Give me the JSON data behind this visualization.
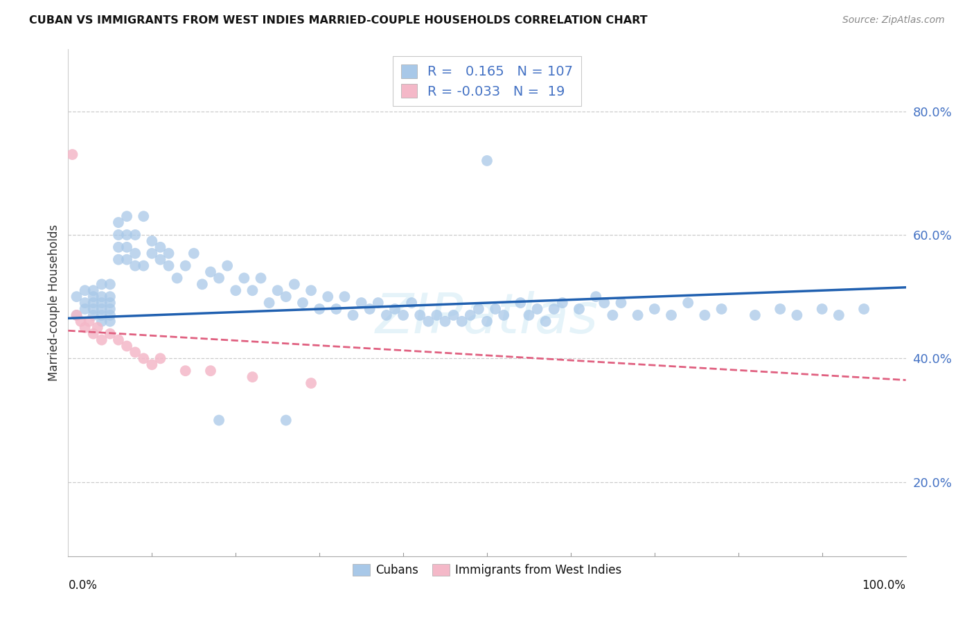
{
  "title": "CUBAN VS IMMIGRANTS FROM WEST INDIES MARRIED-COUPLE HOUSEHOLDS CORRELATION CHART",
  "source": "Source: ZipAtlas.com",
  "ylabel": "Married-couple Households",
  "blue_color": "#a8c8e8",
  "pink_color": "#f4b8c8",
  "blue_line_color": "#2060b0",
  "pink_line_color": "#e06080",
  "watermark": "ZIPatlas",
  "yticks": [
    0.2,
    0.4,
    0.6,
    0.8
  ],
  "xlim": [
    0.0,
    1.0
  ],
  "ylim": [
    0.08,
    0.9
  ],
  "cubans_x": [
    0.01,
    0.01,
    0.02,
    0.02,
    0.02,
    0.03,
    0.03,
    0.03,
    0.03,
    0.03,
    0.04,
    0.04,
    0.04,
    0.04,
    0.04,
    0.04,
    0.05,
    0.05,
    0.05,
    0.05,
    0.05,
    0.05,
    0.06,
    0.06,
    0.06,
    0.06,
    0.07,
    0.07,
    0.07,
    0.07,
    0.08,
    0.08,
    0.08,
    0.09,
    0.09,
    0.1,
    0.1,
    0.11,
    0.11,
    0.12,
    0.12,
    0.13,
    0.14,
    0.15,
    0.16,
    0.17,
    0.18,
    0.19,
    0.2,
    0.21,
    0.22,
    0.23,
    0.24,
    0.25,
    0.26,
    0.27,
    0.28,
    0.29,
    0.3,
    0.31,
    0.32,
    0.33,
    0.34,
    0.35,
    0.36,
    0.37,
    0.38,
    0.39,
    0.4,
    0.41,
    0.42,
    0.43,
    0.44,
    0.45,
    0.46,
    0.47,
    0.48,
    0.49,
    0.5,
    0.51,
    0.52,
    0.54,
    0.55,
    0.56,
    0.57,
    0.58,
    0.59,
    0.61,
    0.63,
    0.64,
    0.65,
    0.66,
    0.68,
    0.7,
    0.72,
    0.74,
    0.76,
    0.78,
    0.82,
    0.85,
    0.87,
    0.9,
    0.92,
    0.95,
    0.5,
    0.18,
    0.26
  ],
  "cubans_y": [
    0.47,
    0.5,
    0.49,
    0.51,
    0.48,
    0.47,
    0.49,
    0.51,
    0.48,
    0.5,
    0.46,
    0.48,
    0.5,
    0.52,
    0.47,
    0.49,
    0.46,
    0.48,
    0.5,
    0.52,
    0.47,
    0.49,
    0.56,
    0.58,
    0.6,
    0.62,
    0.56,
    0.58,
    0.6,
    0.63,
    0.55,
    0.57,
    0.6,
    0.63,
    0.55,
    0.57,
    0.59,
    0.56,
    0.58,
    0.55,
    0.57,
    0.53,
    0.55,
    0.57,
    0.52,
    0.54,
    0.53,
    0.55,
    0.51,
    0.53,
    0.51,
    0.53,
    0.49,
    0.51,
    0.5,
    0.52,
    0.49,
    0.51,
    0.48,
    0.5,
    0.48,
    0.5,
    0.47,
    0.49,
    0.48,
    0.49,
    0.47,
    0.48,
    0.47,
    0.49,
    0.47,
    0.46,
    0.47,
    0.46,
    0.47,
    0.46,
    0.47,
    0.48,
    0.46,
    0.48,
    0.47,
    0.49,
    0.47,
    0.48,
    0.46,
    0.48,
    0.49,
    0.48,
    0.5,
    0.49,
    0.47,
    0.49,
    0.47,
    0.48,
    0.47,
    0.49,
    0.47,
    0.48,
    0.47,
    0.48,
    0.47,
    0.48,
    0.47,
    0.48,
    0.72,
    0.3,
    0.3
  ],
  "west_indies_x": [
    0.005,
    0.01,
    0.015,
    0.02,
    0.025,
    0.03,
    0.035,
    0.04,
    0.05,
    0.06,
    0.07,
    0.08,
    0.09,
    0.1,
    0.11,
    0.14,
    0.17,
    0.22,
    0.29
  ],
  "west_indies_y": [
    0.73,
    0.47,
    0.46,
    0.45,
    0.46,
    0.44,
    0.45,
    0.43,
    0.44,
    0.43,
    0.42,
    0.41,
    0.4,
    0.39,
    0.4,
    0.38,
    0.38,
    0.37,
    0.36
  ]
}
